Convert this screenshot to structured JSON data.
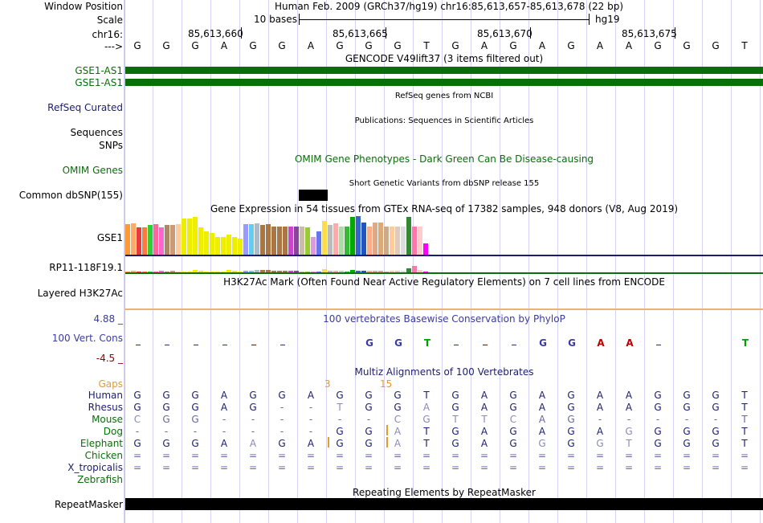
{
  "header": {
    "window_position_label": "Window Position",
    "window_position_value": "Human Feb. 2009 (GRCh37/hg19)   chr16:85,613,657-85,613,678 (22 bp)",
    "scale_label": "Scale",
    "scale_value": "10 bases",
    "assembly": "hg19",
    "chrom_label": "chr16:",
    "arrow_label": "--->",
    "coords": [
      "85,613,660",
      "85,613,665",
      "85,613,670",
      "85,613,675"
    ]
  },
  "sequence": [
    "G",
    "G",
    "G",
    "A",
    "G",
    "G",
    "A",
    "G",
    "G",
    "G",
    "T",
    "G",
    "A",
    "G",
    "A",
    "G",
    "A",
    "A",
    "G",
    "G",
    "G",
    "T"
  ],
  "tracks": {
    "gencode_title": "GENCODE V49lift37 (3 items filtered out)",
    "gencode_items": [
      "GSE1-AS1",
      "GSE1-AS1"
    ],
    "refseq_label": "RefSeq Curated",
    "refseq_title": "RefSeq genes from NCBI",
    "sequences_label": "Sequences",
    "publications_title": "Publications: Sequences in Scientific Articles",
    "snps_label": "SNPs",
    "omim_title": "OMIM Gene Phenotypes - Dark Green Can Be Disease-causing",
    "omim_label": "OMIM Genes",
    "dbsnp_title": "Short Genetic Variants from dbSNP release 155",
    "dbsnp_label": "Common dbSNP(155)",
    "gtex_title": "Gene Expression in 54 tissues from GTEx RNA-seq of 17382 samples, 948 donors (V8, Aug 2019)",
    "gtex_genes": [
      "GSE1",
      "RP11-118F19.1"
    ],
    "h3k27ac_title": "H3K27Ac Mark (Often Found Near Active Regulatory Elements) on 7 cell lines from ENCODE",
    "h3k27ac_label": "Layered H3K27Ac",
    "phylop_title": "100 vertebrates Basewise Conservation by PhyloP",
    "phylop_label": "100 Vert. Cons",
    "phylop_max": "4.88 _",
    "phylop_min": "-4.5 _",
    "multiz_title": "Multiz Alignments of 100 Vertebrates",
    "gaps_label": "Gaps",
    "gap_counts": [
      "3",
      "15"
    ],
    "repeat_title": "Repeating Elements by RepeatMasker",
    "repeat_label": "RepeatMasker"
  },
  "gtex_bars": {
    "gse1": [
      0.78,
      0.8,
      0.7,
      0.7,
      0.75,
      0.78,
      0.7,
      0.75,
      0.75,
      0.78,
      0.92,
      0.92,
      0.95,
      0.7,
      0.6,
      0.55,
      0.45,
      0.45,
      0.5,
      0.45,
      0.4,
      0.78,
      0.78,
      0.8,
      0.75,
      0.78,
      0.72,
      0.72,
      0.72,
      0.72,
      0.72,
      0.72,
      0.7,
      0.45,
      0.6,
      0.85,
      0.75,
      0.8,
      0.72,
      0.72,
      0.95,
      0.98,
      0.82,
      0.72,
      0.82,
      0.82,
      0.72,
      0.72,
      0.72,
      0.72,
      0.95,
      0.72,
      0.72,
      0.28
    ],
    "rp11": [
      0.15,
      0.2,
      0.1,
      0.1,
      0.1,
      0.15,
      0.2,
      0.1,
      0.2,
      0.1,
      0.1,
      0.1,
      0.3,
      0.2,
      0.15,
      0.1,
      0.1,
      0.1,
      0.3,
      0.2,
      0.1,
      0.2,
      0.2,
      0.3,
      0.3,
      0.3,
      0.2,
      0.2,
      0.2,
      0.2,
      0.2,
      0.1,
      0.1,
      0.1,
      0.1,
      0.4,
      0.2,
      0.2,
      0.2,
      0.1,
      0.3,
      0.2,
      0.2,
      0.2,
      0.2,
      0.2,
      0.1,
      0.2,
      0.2,
      0.2,
      0.5,
      0.9,
      0.3,
      0.1
    ],
    "colors": [
      "#ff9a33",
      "#ffaa66",
      "#e63c3c",
      "#ff7a40",
      "#33cc33",
      "#ff6699",
      "#ff66cc",
      "#aa8866",
      "#cc9977",
      "#ffcc99",
      "#eeee00",
      "#eeee00",
      "#eeee00",
      "#eeee00",
      "#eeee00",
      "#eeee00",
      "#eeee00",
      "#eeee00",
      "#eeee00",
      "#eeee00",
      "#eeee00",
      "#9999ff",
      "#66ccee",
      "#aabbcc",
      "#aa7744",
      "#aa7744",
      "#aa7744",
      "#aa7744",
      "#aa7744",
      "#cc44cc",
      "#884499",
      "#ccbbaa",
      "#99cc33",
      "#dd99dd",
      "#6677ee",
      "#ffdd44",
      "#bbbbbb",
      "#ffaaaa",
      "#aaddaa",
      "#33bb33",
      "#00aa00",
      "#3366cc",
      "#2255bb",
      "#ffaa88",
      "#ddaa88",
      "#ddaa77",
      "#ccaa88",
      "#ffcc99",
      "#ddccbb",
      "#dddddd",
      "#338833",
      "#ff77aa",
      "#ffcccc",
      "#ff00ff"
    ]
  },
  "phylop_letters": [
    {
      "t": "_",
      "c": "#3b3ba0"
    },
    {
      "t": "_",
      "c": "#3b3ba0"
    },
    {
      "t": "_",
      "c": "#3b3ba0"
    },
    {
      "t": "_",
      "c": "#3b3ba0"
    },
    {
      "t": "_",
      "c": "#c00000"
    },
    {
      "t": "_",
      "c": "#3b3ba0"
    },
    {
      "t": "",
      "c": "#3b3ba0"
    },
    {
      "t": "",
      "c": "#3b3ba0"
    },
    {
      "t": "G",
      "c": "#3b3ba0"
    },
    {
      "t": "G",
      "c": "#3b3ba0"
    },
    {
      "t": "T",
      "c": "#00a000"
    },
    {
      "t": "_",
      "c": "#3b3ba0"
    },
    {
      "t": "_",
      "c": "#c00000"
    },
    {
      "t": "_",
      "c": "#3b3ba0"
    },
    {
      "t": "G",
      "c": "#3b3ba0"
    },
    {
      "t": "G",
      "c": "#3b3ba0"
    },
    {
      "t": "A",
      "c": "#c00000"
    },
    {
      "t": "A",
      "c": "#c00000"
    },
    {
      "t": "_",
      "c": "#3b3ba0"
    },
    {
      "t": "",
      "c": "#3b3ba0"
    },
    {
      "t": "",
      "c": "#3b3ba0"
    },
    {
      "t": "T",
      "c": "#00a000"
    }
  ],
  "alignment": {
    "species": [
      {
        "name": "Human",
        "color": "#1c1c70",
        "bases": [
          "G",
          "G",
          "G",
          "A",
          "G",
          "G",
          "A",
          "G",
          "G",
          "G",
          "T",
          "G",
          "A",
          "G",
          "A",
          "G",
          "A",
          "A",
          "G",
          "G",
          "G",
          "T"
        ],
        "bc": "#1c1c70"
      },
      {
        "name": "Rhesus",
        "color": "#1c1c70",
        "bases": [
          "G",
          "G",
          "G",
          "A",
          "G",
          "-",
          "-",
          "T",
          "G",
          "G",
          "A",
          "G",
          "A",
          "G",
          "A",
          "G",
          "A",
          "A",
          "G",
          "G",
          "G",
          "T"
        ],
        "bc": "#1c1c70"
      },
      {
        "name": "Mouse",
        "color": "#0a6e0a",
        "bases": [
          "C",
          "G",
          "G",
          "-",
          "-",
          "-",
          "-",
          "-",
          "-",
          "C",
          "G",
          "T",
          "T",
          "C",
          "A",
          "G",
          "-",
          "-",
          "-",
          "-",
          "-",
          "T"
        ],
        "bc": "#6666aa"
      },
      {
        "name": "Dog",
        "color": "#0a6e0a",
        "bases": [
          "-",
          "-",
          "-",
          "-",
          "-",
          "-",
          "-",
          "G",
          "G",
          "A",
          "T",
          "G",
          "A",
          "G",
          "A",
          "G",
          "A",
          "G",
          "G",
          "G",
          "G",
          "T"
        ],
        "bc": "#1c1c70"
      },
      {
        "name": "Elephant",
        "color": "#0a6e0a",
        "bases": [
          "G",
          "G",
          "G",
          "A",
          "A",
          "G",
          "A",
          "G",
          "G",
          "A",
          "T",
          "G",
          "A",
          "G",
          "G",
          "G",
          "G",
          "T",
          "G",
          "G",
          "G",
          "T"
        ],
        "bc": "#1c1c70"
      },
      {
        "name": "Chicken",
        "color": "#0a6e0a",
        "bases": [
          "=",
          "=",
          "=",
          "=",
          "=",
          "=",
          "=",
          "=",
          "=",
          "=",
          "=",
          "=",
          "=",
          "=",
          "=",
          "=",
          "=",
          "=",
          "=",
          "=",
          "=",
          "="
        ],
        "bc": "#6666aa"
      },
      {
        "name": "X_tropicalis",
        "color": "#1c1c70",
        "bases": [
          "=",
          "=",
          "=",
          "=",
          "=",
          "=",
          "=",
          "=",
          "=",
          "=",
          "=",
          "=",
          "=",
          "=",
          "=",
          "=",
          "=",
          "=",
          "=",
          "=",
          "=",
          "="
        ],
        "bc": "#6666aa"
      },
      {
        "name": "Zebrafish",
        "color": "#0a6e0a",
        "bases": [
          "",
          "",
          "",
          "",
          "",
          "",
          "",
          "",
          "",
          "",
          "",
          "",
          "",
          "",
          "",
          "",
          "",
          "",
          "",
          "",
          "",
          ""
        ],
        "bc": "#6666aa"
      }
    ]
  }
}
